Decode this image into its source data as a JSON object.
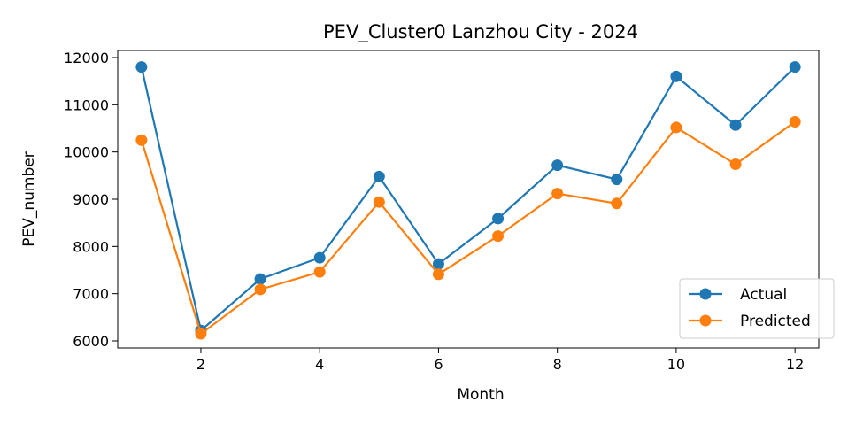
{
  "chart_data": {
    "type": "line",
    "title": "PEV_Cluster0 Lanzhou City - 2024",
    "xlabel": "Month",
    "ylabel": "PEV_number",
    "x": [
      1,
      2,
      3,
      4,
      5,
      6,
      7,
      8,
      9,
      10,
      11,
      12
    ],
    "xlim": [
      0.6,
      12.4
    ],
    "ylim": [
      5850,
      12150
    ],
    "xticks": [
      2,
      4,
      6,
      8,
      10,
      12
    ],
    "yticks": [
      6000,
      7000,
      8000,
      9000,
      10000,
      11000,
      12000
    ],
    "grid": false,
    "legend_position": "lower-right",
    "series": [
      {
        "name": "Actual",
        "color": "#1f77b4",
        "values": [
          11800,
          6220,
          7310,
          7760,
          9480,
          7630,
          8590,
          9720,
          9420,
          11600,
          10570,
          11800
        ]
      },
      {
        "name": "Predicted",
        "color": "#ff7f0e",
        "values": [
          10250,
          6150,
          7090,
          7460,
          8940,
          7410,
          8220,
          9120,
          8910,
          10520,
          9740,
          10640
        ]
      }
    ]
  }
}
